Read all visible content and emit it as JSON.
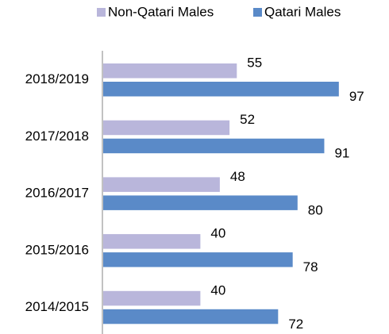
{
  "chart_data": {
    "type": "hbar",
    "categories": [
      "2018/2019",
      "2017/2018",
      "2016/2017",
      "2015/2016",
      "2014/2015"
    ],
    "series": [
      {
        "name": "Non-Qatari Males",
        "color": "#b9b6db",
        "values": [
          55,
          52,
          48,
          40,
          40
        ]
      },
      {
        "name": "Qatari Males",
        "color": "#5a8ac8",
        "values": [
          97,
          91,
          80,
          78,
          72
        ]
      }
    ],
    "legend": "top"
  }
}
